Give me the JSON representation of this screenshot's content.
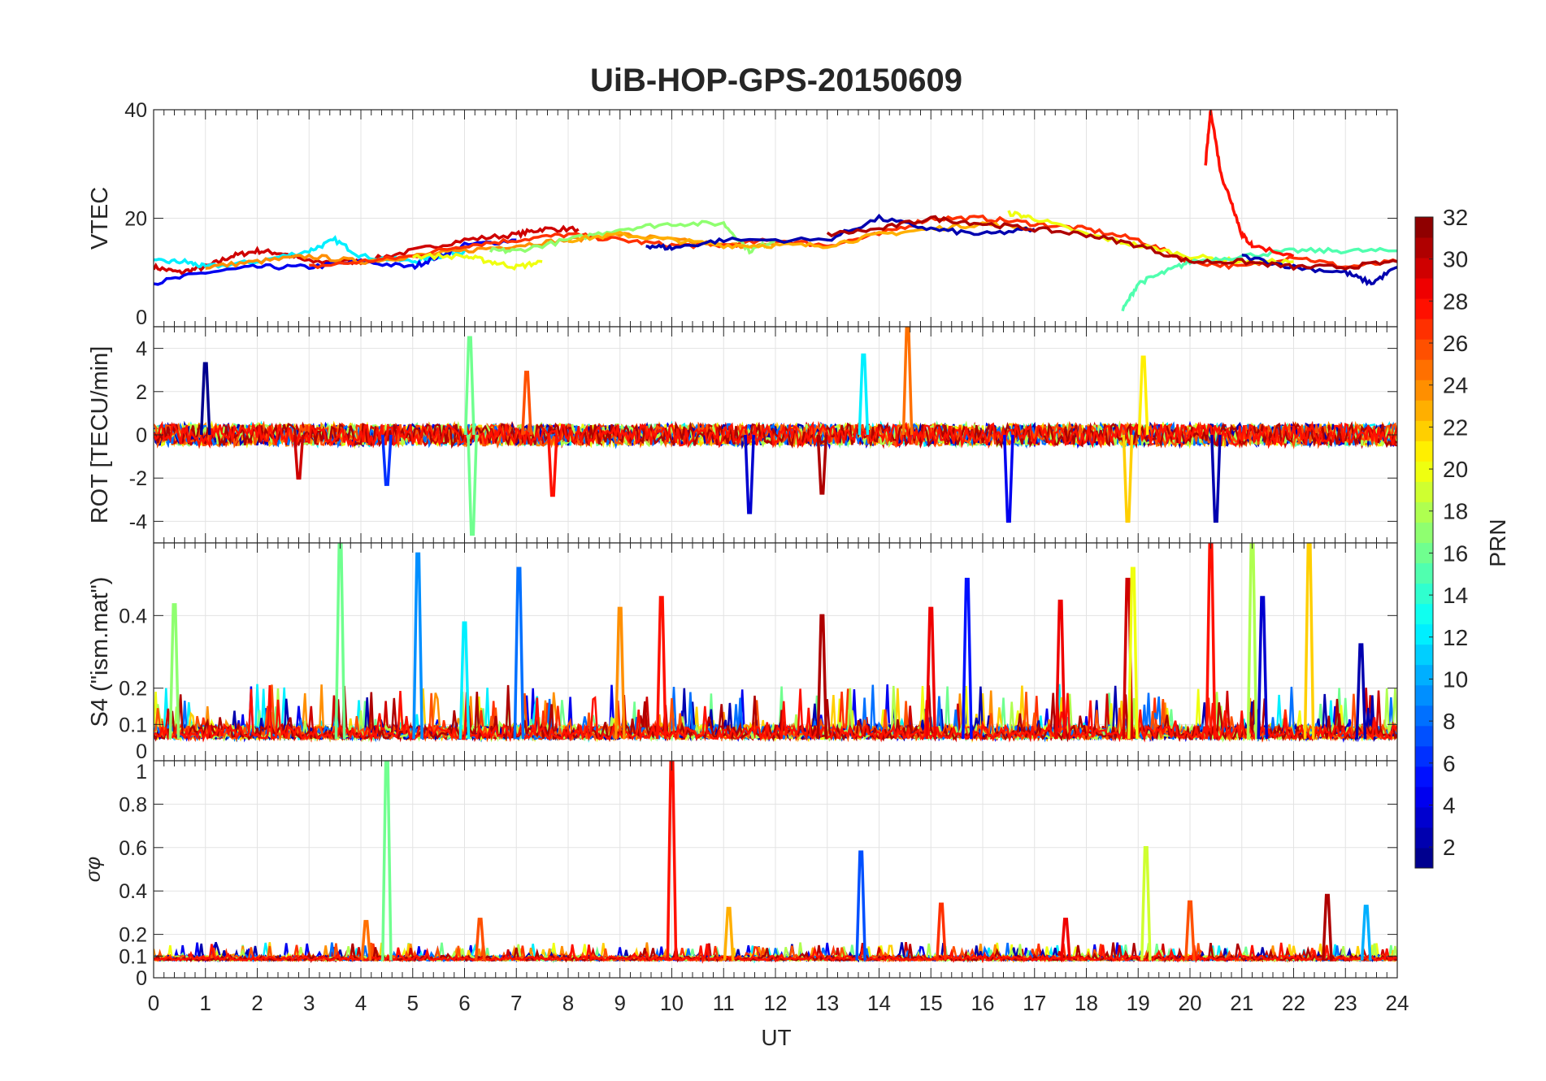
{
  "chart_data": {
    "type": "line",
    "title": "UiB-HOP-GPS-20150609",
    "xlabel": "UT",
    "xlim": [
      0,
      24
    ],
    "xticks": [
      "0",
      "1",
      "2",
      "3",
      "4",
      "5",
      "6",
      "7",
      "8",
      "9",
      "10",
      "11",
      "12",
      "13",
      "14",
      "15",
      "16",
      "17",
      "18",
      "19",
      "20",
      "21",
      "22",
      "23",
      "24"
    ],
    "grid": true,
    "colorbar": {
      "label": "PRN",
      "range": [
        1,
        32
      ],
      "colormap": "jet",
      "ticks": [
        "2",
        "4",
        "6",
        "8",
        "10",
        "12",
        "14",
        "16",
        "18",
        "20",
        "22",
        "24",
        "26",
        "28",
        "30",
        "32"
      ],
      "placement": "right"
    },
    "panels": [
      {
        "ylabel": "VTEC",
        "ylim": [
          0,
          40
        ],
        "yticks": [
          {
            "v": 0,
            "t": "0"
          },
          {
            "v": 20,
            "t": "20"
          },
          {
            "v": 40,
            "t": "40"
          }
        ],
        "series": [
          {
            "prn": 30,
            "x": [
              0,
              0.5,
              1,
              1.5,
              2,
              2.5,
              3,
              4,
              5,
              6,
              7,
              7.5,
              8.2
            ],
            "y": [
              11,
              10,
              11,
              13,
              14,
              13.5,
              12,
              12,
              14,
              16,
              17,
              18,
              18
            ]
          },
          {
            "prn": 12,
            "x": [
              0,
              0.6,
              1,
              2,
              3,
              3.5,
              4,
              5,
              5.5,
              6
            ],
            "y": [
              12,
              12,
              11,
              12,
              14,
              16,
              13,
              12,
              13,
              14
            ]
          },
          {
            "prn": 4,
            "x": [
              0,
              1,
              2,
              3,
              4,
              5,
              5.5,
              6,
              7
            ],
            "y": [
              8,
              10,
              11,
              11,
              12,
              11,
              13,
              15,
              16
            ]
          },
          {
            "prn": 24,
            "x": [
              1,
              2,
              3,
              4,
              5,
              6,
              7,
              8,
              9,
              10,
              11,
              12
            ],
            "y": [
              11,
              12,
              13,
              12,
              13,
              14,
              15,
              16,
              17,
              16,
              15,
              15
            ]
          },
          {
            "prn": 27,
            "x": [
              3,
              4,
              5,
              6,
              7,
              8,
              9,
              10,
              11,
              12,
              13,
              14,
              15,
              16,
              17,
              18,
              19,
              20,
              21,
              22,
              23,
              24
            ],
            "y": [
              11,
              12,
              13,
              15,
              16,
              17,
              16,
              15,
              15,
              16,
              15,
              17,
              20,
              20,
              19,
              18,
              16,
              12,
              11,
              13,
              11,
              12
            ]
          },
          {
            "prn": 17,
            "x": [
              6.5,
              7,
              8,
              9,
              10,
              11,
              11.5,
              12
            ],
            "y": [
              14,
              14,
              16,
              18,
              19,
              19,
              14,
              16
            ]
          },
          {
            "prn": 23,
            "x": [
              8,
              9,
              10,
              11,
              12,
              13,
              14,
              15,
              16,
              17
            ],
            "y": [
              16,
              17,
              16,
              15,
              15,
              15,
              17,
              18,
              19,
              18
            ]
          },
          {
            "prn": 20,
            "x": [
              5,
              6,
              6.5,
              7,
              7.5
            ],
            "y": [
              13,
              13,
              12,
              11,
              12
            ]
          },
          {
            "prn": 20,
            "x": [
              16.5,
              17,
              18,
              19,
              20,
              21,
              22
            ],
            "y": [
              21,
              20,
              17,
              15,
              13,
              12,
              12
            ]
          },
          {
            "prn": 15,
            "x": [
              18.7,
              19,
              19.5,
              20,
              21,
              22,
              23,
              24
            ],
            "y": [
              3,
              8,
              10,
              12,
              13,
              14,
              14,
              14
            ]
          },
          {
            "prn": 2,
            "x": [
              9.5,
              10,
              11,
              13,
              14,
              15,
              16,
              17
            ],
            "y": [
              15,
              14.5,
              16,
              16,
              20,
              18,
              17,
              18
            ]
          },
          {
            "prn": 2,
            "x": [
              21,
              22,
              23,
              23.5,
              24
            ],
            "y": [
              13,
              11,
              10,
              8,
              11
            ]
          },
          {
            "prn": 31,
            "x": [
              13,
              14,
              15,
              16,
              17,
              18,
              19,
              20,
              21,
              22,
              23,
              24
            ],
            "y": [
              17,
              18,
              20,
              19,
              18,
              17,
              15,
              12,
              12,
              11,
              11,
              12
            ]
          },
          {
            "prn": 28,
            "x": [
              20.3,
              20.4,
              20.6,
              20.8,
              21,
              21.2,
              22
            ],
            "y": [
              30,
              40,
              28,
              23,
              17,
              15,
              13
            ]
          }
        ]
      },
      {
        "ylabel": "ROT [TECU/min]",
        "ylim": [
          -5,
          5
        ],
        "yticks": [
          {
            "v": -4,
            "t": "-4"
          },
          {
            "v": -2,
            "t": "-2"
          },
          {
            "v": 0,
            "t": "0"
          },
          {
            "v": 2,
            "t": "2"
          },
          {
            "v": 4,
            "t": "4"
          }
        ],
        "baseline": 0,
        "spikes": [
          {
            "prn": 1,
            "t": 1.0,
            "v": 3.3
          },
          {
            "prn": 16,
            "t": 6.1,
            "v": 4.5
          },
          {
            "prn": 16,
            "t": 6.15,
            "v": -4.6
          },
          {
            "prn": 26,
            "t": 7.2,
            "v": 2.9
          },
          {
            "prn": 28,
            "t": 7.7,
            "v": -2.8
          },
          {
            "prn": 3,
            "t": 11.5,
            "v": -3.6
          },
          {
            "prn": 12,
            "t": 13.7,
            "v": 3.7
          },
          {
            "prn": 25,
            "t": 14.55,
            "v": 5
          },
          {
            "prn": 4,
            "t": 16.5,
            "v": -4
          },
          {
            "prn": 21,
            "t": 19.1,
            "v": 3.6
          },
          {
            "prn": 22,
            "t": 18.8,
            "v": -4
          },
          {
            "prn": 2,
            "t": 20.5,
            "v": -4
          },
          {
            "prn": 6,
            "t": 4.5,
            "v": -2.3
          },
          {
            "prn": 30,
            "t": 2.8,
            "v": -2
          },
          {
            "prn": 31,
            "t": 12.9,
            "v": -2.7
          }
        ]
      },
      {
        "ylabel": "S4 (\"ism.mat\")",
        "ylim": [
          0,
          0.6
        ],
        "yticks": [
          {
            "v": 0,
            "t": "0"
          },
          {
            "v": 0.1,
            "t": "0.1"
          },
          {
            "v": 0.2,
            "t": "0.2"
          },
          {
            "v": 0.4,
            "t": "0.4"
          }
        ],
        "baseline": 0.06,
        "spikes": [
          {
            "prn": 17,
            "t": 0.4,
            "v": 0.43
          },
          {
            "prn": 16,
            "t": 3.6,
            "v": 0.6
          },
          {
            "prn": 9,
            "t": 5.1,
            "v": 0.57
          },
          {
            "prn": 8,
            "t": 7.05,
            "v": 0.53
          },
          {
            "prn": 12,
            "t": 6.0,
            "v": 0.38
          },
          {
            "prn": 28,
            "t": 9.8,
            "v": 0.45
          },
          {
            "prn": 24,
            "t": 9.0,
            "v": 0.42
          },
          {
            "prn": 5,
            "t": 15.7,
            "v": 0.5
          },
          {
            "prn": 29,
            "t": 15.0,
            "v": 0.42
          },
          {
            "prn": 29,
            "t": 17.5,
            "v": 0.44
          },
          {
            "prn": 30,
            "t": 18.8,
            "v": 0.5
          },
          {
            "prn": 20,
            "t": 18.9,
            "v": 0.53
          },
          {
            "prn": 28,
            "t": 20.4,
            "v": 0.6
          },
          {
            "prn": 18,
            "t": 21.2,
            "v": 0.6
          },
          {
            "prn": 22,
            "t": 22.3,
            "v": 0.6
          },
          {
            "prn": 3,
            "t": 21.4,
            "v": 0.45
          },
          {
            "prn": 2,
            "t": 23.3,
            "v": 0.32
          },
          {
            "prn": 31,
            "t": 12.9,
            "v": 0.4
          }
        ]
      },
      {
        "ylabel": "σφ",
        "ylim": [
          0,
          1
        ],
        "yticks": [
          {
            "v": 0,
            "t": "0"
          },
          {
            "v": 0.1,
            "t": "0.1"
          },
          {
            "v": 0.2,
            "t": "0.2"
          },
          {
            "v": 0.4,
            "t": "0.4"
          },
          {
            "v": 0.6,
            "t": "0.6"
          },
          {
            "v": 0.8,
            "t": "0.8"
          },
          {
            "v": 1,
            "t": "1"
          }
        ],
        "baseline": 0.08,
        "spikes": [
          {
            "prn": 16,
            "t": 4.5,
            "v": 1.0
          },
          {
            "prn": 28,
            "t": 10.0,
            "v": 1.0
          },
          {
            "prn": 7,
            "t": 13.65,
            "v": 0.58
          },
          {
            "prn": 19,
            "t": 19.15,
            "v": 0.6
          },
          {
            "prn": 23,
            "t": 11.1,
            "v": 0.32
          },
          {
            "prn": 26,
            "t": 20.0,
            "v": 0.35
          },
          {
            "prn": 31,
            "t": 22.65,
            "v": 0.38
          },
          {
            "prn": 10,
            "t": 23.4,
            "v": 0.33
          },
          {
            "prn": 27,
            "t": 15.2,
            "v": 0.34
          },
          {
            "prn": 25,
            "t": 4.1,
            "v": 0.26
          },
          {
            "prn": 26,
            "t": 6.3,
            "v": 0.27
          },
          {
            "prn": 29,
            "t": 17.6,
            "v": 0.27
          }
        ]
      }
    ]
  }
}
